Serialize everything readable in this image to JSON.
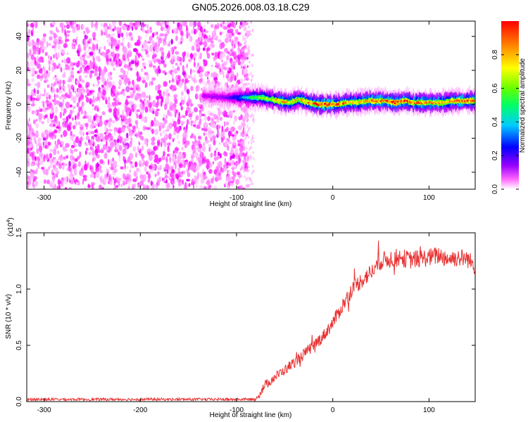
{
  "figure_title": "GN05.2026.008.03.18.C29",
  "chart_data": [
    {
      "type": "heatmap",
      "title": "GN05.2026.008.03.18.C29",
      "xlabel": "Height of straight line (km)",
      "ylabel": "Frequency (Hz)",
      "xlim": [
        -318,
        148
      ],
      "ylim": [
        -50,
        49
      ],
      "x_ticks": [
        -300,
        -200,
        -100,
        0,
        100
      ],
      "x_tick_labels": [
        "-300",
        "-200",
        "-100",
        "0",
        "100"
      ],
      "y_ticks": [
        -40,
        -20,
        0,
        20,
        40
      ],
      "y_tick_labels": [
        "-40",
        "-20",
        "0",
        "20",
        "40"
      ],
      "colorbar": {
        "label": "Normalized spectral amplitude",
        "range": [
          0.0,
          1.0
        ],
        "ticks": [
          0.0,
          0.2,
          0.4,
          0.6,
          0.8
        ],
        "tick_labels": [
          "0.0",
          "0.2",
          "0.4",
          "0.6",
          "0.8"
        ],
        "colormap": [
          "#ffffff",
          "#ff00ff",
          "#6600ff",
          "#0000ff",
          "#00ccff",
          "#00ff66",
          "#66ff00",
          "#ffff00",
          "#ff8800",
          "#ff0000"
        ]
      },
      "noise_region": {
        "x_range": [
          -318,
          -88
        ],
        "freq_range": [
          -50,
          49
        ],
        "amplitude_range": [
          0.02,
          0.15
        ]
      },
      "signal_track": {
        "x": [
          -135,
          -110,
          -95,
          -85,
          -75,
          -65,
          -55,
          -45,
          -35,
          -25,
          -15,
          -5,
          5,
          15,
          25,
          35,
          45,
          55,
          65,
          75,
          85,
          95,
          105,
          115,
          125,
          135,
          148
        ],
        "frequency": [
          5,
          4,
          4,
          4,
          4,
          3,
          2,
          1,
          3,
          1,
          0,
          0,
          0,
          1,
          1,
          2,
          2,
          2,
          1,
          2,
          1,
          1,
          1,
          1,
          2,
          2,
          2
        ],
        "amplitude": [
          0.15,
          0.2,
          0.4,
          0.55,
          0.65,
          0.7,
          0.85,
          0.8,
          0.75,
          0.85,
          0.9,
          0.95,
          0.9,
          0.85,
          0.8,
          0.85,
          0.9,
          0.9,
          0.95,
          0.9,
          0.85,
          0.9,
          0.85,
          0.8,
          0.85,
          0.9,
          0.9
        ]
      }
    },
    {
      "type": "line",
      "xlabel": "Height of straight line (km)",
      "ylabel": "SNR (10 * v/v)",
      "y_multiplier_label": "(x10",
      "y_multiplier_exponent": "4",
      "y_multiplier_close": ")",
      "xlim": [
        -318,
        148
      ],
      "ylim": [
        0,
        1.5
      ],
      "x_ticks": [
        -300,
        -200,
        -100,
        0,
        100
      ],
      "x_tick_labels": [
        "-300",
        "-200",
        "-100",
        "0",
        "100"
      ],
      "y_ticks": [
        0.0,
        0.5,
        1.0,
        1.5
      ],
      "y_tick_labels": [
        "0.0",
        "0.5",
        "1.0",
        "1.5"
      ],
      "color": "#e83030",
      "series": [
        {
          "name": "SNR",
          "x": [
            -318,
            -300,
            -250,
            -200,
            -150,
            -100,
            -88,
            -80,
            -70,
            -60,
            -50,
            -40,
            -30,
            -20,
            -10,
            0,
            10,
            20,
            30,
            40,
            50,
            60,
            70,
            80,
            90,
            100,
            110,
            120,
            130,
            140,
            148
          ],
          "values": [
            0.02,
            0.02,
            0.02,
            0.02,
            0.02,
            0.02,
            0.02,
            0.02,
            0.15,
            0.22,
            0.28,
            0.35,
            0.42,
            0.5,
            0.58,
            0.7,
            0.85,
            1.0,
            1.08,
            1.15,
            1.25,
            1.27,
            1.28,
            1.26,
            1.27,
            1.28,
            1.3,
            1.27,
            1.28,
            1.27,
            1.2
          ],
          "noise_amplitude": 0.06
        }
      ]
    }
  ]
}
